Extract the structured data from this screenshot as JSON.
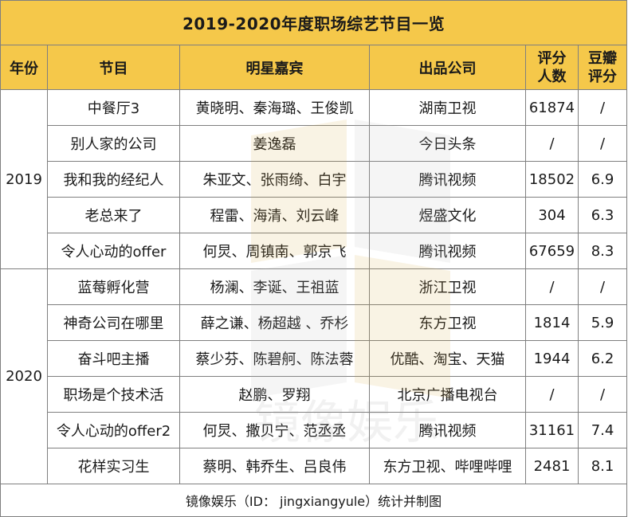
{
  "title": "2019-2020年度职场综艺节目一览",
  "headers": {
    "year": "年份",
    "program": "节目",
    "stars": "明星嘉宾",
    "company": "出品公司",
    "rating_count_line1": "评分",
    "rating_count_line2": "人数",
    "douban_line1": "豆瓣",
    "douban_line2": "评分"
  },
  "groups": [
    {
      "year": "2019",
      "rows": [
        {
          "program": "中餐厅3",
          "stars": "黄晓明、秦海璐、王俊凯",
          "company": "湖南卫视",
          "count": "61874",
          "score": "/"
        },
        {
          "program": "别人家的公司",
          "stars": "姜逸磊",
          "company": "今日头条",
          "count": "/",
          "score": "/"
        },
        {
          "program": "我和我的经纪人",
          "stars": "朱亚文、张雨绮、白宇",
          "company": "腾讯视频",
          "count": "18502",
          "score": "6.9"
        },
        {
          "program": "老总来了",
          "stars": "程雷、海清、刘云峰",
          "company": "煜盛文化",
          "count": "304",
          "score": "6.3"
        },
        {
          "program": "令人心动的offer",
          "stars": "何炅、周镇南、郭京飞",
          "company": "腾讯视频",
          "count": "67659",
          "score": "8.3"
        }
      ]
    },
    {
      "year": "2020",
      "rows": [
        {
          "program": "蓝莓孵化营",
          "stars": "杨澜、李诞、王祖蓝",
          "company": "浙江卫视",
          "count": "/",
          "score": "/"
        },
        {
          "program": "神奇公司在哪里",
          "stars": "薛之谦、杨超越 、乔杉",
          "company": "东方卫视",
          "count": "1814",
          "score": "5.9"
        },
        {
          "program": "奋斗吧主播",
          "stars": "蔡少芬、陈碧舸、陈法蓉",
          "company": "优酷、淘宝、天猫",
          "count": "1944",
          "score": "6.2"
        },
        {
          "program": "职场是个技术活",
          "stars": "赵鹏、罗翔",
          "company": "北京广播电视台",
          "count": "/",
          "score": "/"
        },
        {
          "program": "令人心动的offer2",
          "stars": "何炅、撒贝宁、范丞丞",
          "company": "腾讯视频",
          "count": "31161",
          "score": "7.4"
        },
        {
          "program": "花样实习生",
          "stars": "蔡明、韩乔生、吕良伟",
          "company": "东方卫视、哔哩哔哩",
          "count": "2481",
          "score": "8.1"
        }
      ]
    }
  ],
  "footer": "镜像娱乐（ID： jingxiangyule）统计并制图",
  "watermark_text": "镜像娱乐",
  "colors": {
    "header_bg": "#f5c84a",
    "border": "#7f7f7f",
    "watermark": "#d9a93a"
  }
}
